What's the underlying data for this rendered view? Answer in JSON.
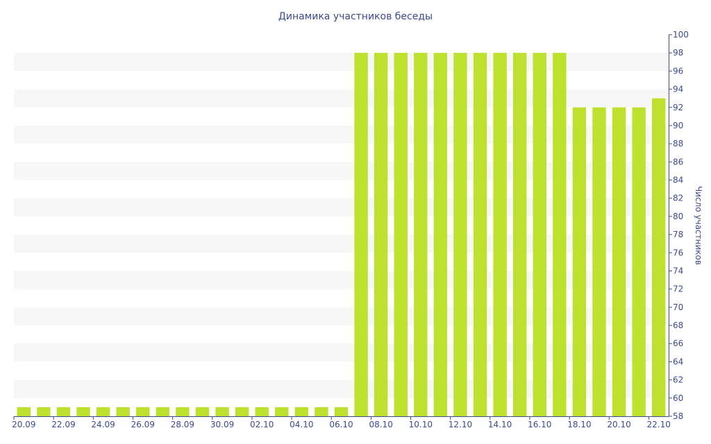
{
  "chart_data": {
    "type": "bar",
    "title": "Динамика участников беседы",
    "ylabel": "Число участников",
    "xlabel": "",
    "ylim": [
      58,
      100
    ],
    "y_tick_step": 2,
    "y_axis_side": "right",
    "bar_color": "#bde12d",
    "band_color": "#f7f7f7",
    "text_color": "#3a4a8c",
    "grid": "alternating horizontal bands",
    "categories": [
      "20.09",
      "21.09",
      "22.09",
      "23.09",
      "24.09",
      "25.09",
      "26.09",
      "27.09",
      "28.09",
      "29.09",
      "30.09",
      "01.10",
      "02.10",
      "03.10",
      "04.10",
      "05.10",
      "06.10",
      "07.10",
      "08.10",
      "09.10",
      "10.10",
      "11.10",
      "12.10",
      "13.10",
      "14.10",
      "15.10",
      "16.10",
      "17.10",
      "18.10",
      "19.10",
      "20.10",
      "21.10",
      "22.10"
    ],
    "x_tick_labels": [
      "20.09",
      "22.09",
      "24.09",
      "26.09",
      "28.09",
      "30.09",
      "02.10",
      "04.10",
      "06.10",
      "08.10",
      "10.10",
      "12.10",
      "14.10",
      "16.10",
      "18.10",
      "20.10",
      "22.10"
    ],
    "values": [
      59,
      59,
      59,
      59,
      59,
      59,
      59,
      59,
      59,
      59,
      59,
      59,
      59,
      59,
      59,
      59,
      59,
      98,
      98,
      98,
      98,
      98,
      98,
      98,
      98,
      98,
      98,
      98,
      92,
      92,
      92,
      92,
      93
    ]
  }
}
